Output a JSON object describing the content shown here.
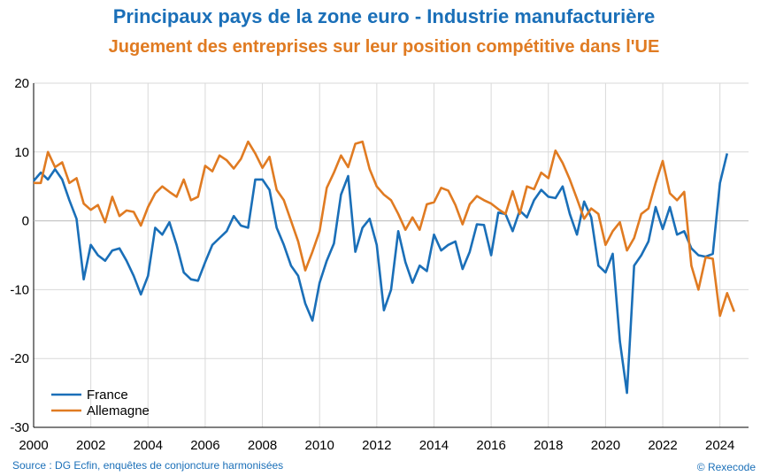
{
  "title": "Principaux pays de la zone euro - Industrie manufacturière",
  "subtitle": "Jugement des entreprises sur leur position compétitive dans l'UE",
  "source": "Source : DG Ecfin, enquêtes de conjoncture harmonisées",
  "copyright": "© Rexecode",
  "colors": {
    "France": "#1a6fb8",
    "Allemagne": "#e07b22",
    "grid": "#d9d9d9",
    "axis": "#000000"
  },
  "chart_data": {
    "type": "line",
    "title": "Principaux pays de la zone euro - Industrie manufacturière",
    "subtitle": "Jugement des entreprises sur leur position compétitive dans l'UE",
    "xlabel": "",
    "ylabel": "",
    "xlim": [
      2000,
      2025
    ],
    "ylim": [
      -30,
      20
    ],
    "x_ticks": [
      2000,
      2002,
      2004,
      2006,
      2008,
      2010,
      2012,
      2014,
      2016,
      2018,
      2020,
      2022,
      2024
    ],
    "x_tick_labels": [
      "2000",
      "2002",
      "2004",
      "2006",
      "2008",
      "2010",
      "2012",
      "2014",
      "2016",
      "2018",
      "2020",
      "2022",
      "2024"
    ],
    "y_ticks": [
      -30,
      -20,
      -10,
      0,
      10,
      20
    ],
    "y_tick_labels": [
      "-30",
      "-20",
      "-10",
      "0",
      "10",
      "20"
    ],
    "grid": true,
    "legend_position": "bottom-left",
    "x_start": 2000.0,
    "x_step": 0.25,
    "series": [
      {
        "name": "France",
        "values": [
          5.8,
          7.0,
          6.0,
          7.5,
          6.0,
          3.0,
          0.3,
          -8.5,
          -3.5,
          -5.0,
          -5.8,
          -4.3,
          -4.0,
          -5.8,
          -8.0,
          -10.7,
          -8.0,
          -1.0,
          -2.0,
          -0.2,
          -3.5,
          -7.5,
          -8.5,
          -8.7,
          -6.0,
          -3.5,
          -2.5,
          -1.5,
          0.7,
          -0.7,
          -1.0,
          6.0,
          6.0,
          4.5,
          -1.0,
          -3.5,
          -6.5,
          -8.0,
          -12.0,
          -14.5,
          -9.0,
          -5.8,
          -3.3,
          3.8,
          6.5,
          -4.5,
          -1.0,
          0.3,
          -3.5,
          -13.0,
          -10.0,
          -1.5,
          -6.0,
          -9.0,
          -6.5,
          -7.3,
          -2.0,
          -4.3,
          -3.5,
          -3.0,
          -7.0,
          -4.5,
          -0.5,
          -0.6,
          -5.0,
          1.2,
          1.0,
          -1.5,
          1.5,
          0.5,
          3.0,
          4.5,
          3.5,
          3.3,
          5.0,
          1.0,
          -2.0,
          2.8,
          0.5,
          -6.5,
          -7.5,
          -4.8,
          -17.5,
          -25.0,
          -6.5,
          -5.0,
          -3.0,
          2.0,
          -1.2,
          2.0,
          -2.0,
          -1.5,
          -4.0,
          -5.0,
          -5.2,
          -4.8,
          5.5,
          9.8
        ]
      },
      {
        "name": "Allemagne",
        "values": [
          5.5,
          5.5,
          10.0,
          7.8,
          8.5,
          5.5,
          6.2,
          2.5,
          1.6,
          2.3,
          -0.2,
          3.5,
          0.7,
          1.5,
          1.3,
          -0.7,
          2.0,
          4.0,
          5.0,
          4.2,
          3.5,
          6.0,
          3.0,
          3.5,
          8.0,
          7.2,
          9.5,
          8.8,
          7.6,
          9.0,
          11.5,
          9.8,
          7.7,
          9.3,
          4.5,
          3.0,
          0.0,
          -3.0,
          -7.2,
          -4.5,
          -1.5,
          4.8,
          7.0,
          9.5,
          7.8,
          11.2,
          11.5,
          7.5,
          5.0,
          3.8,
          3.0,
          1.0,
          -1.3,
          0.5,
          -1.3,
          2.4,
          2.7,
          4.8,
          4.4,
          2.3,
          -0.5,
          2.4,
          3.6,
          3.0,
          2.5,
          1.7,
          1.0,
          4.3,
          1.0,
          5.0,
          4.6,
          7.0,
          6.2,
          10.2,
          8.4,
          6.0,
          3.2,
          0.3,
          1.8,
          1.0,
          -3.5,
          -1.5,
          -0.2,
          -4.3,
          -2.5,
          1.0,
          1.8,
          5.5,
          8.7,
          4.0,
          3.0,
          4.2,
          -6.5,
          -10.0,
          -5.3,
          -5.5,
          -13.8,
          -10.5,
          -13.2
        ]
      }
    ]
  }
}
